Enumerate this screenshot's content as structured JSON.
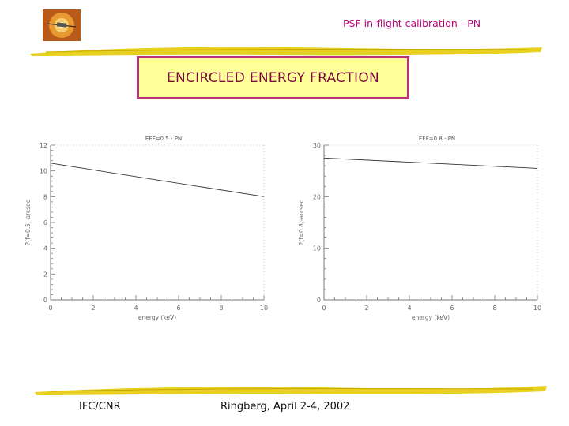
{
  "header": {
    "title": "PSF in-flight calibration - PN"
  },
  "slide": {
    "title": "ENCIRCLED ENERGY FRACTION"
  },
  "footer": {
    "left": "IFC/CNR",
    "right": "Ringberg, April 2-4, 2002"
  },
  "colors": {
    "accent": "#b5357a",
    "title_bg": "#ffff99",
    "stroke": "#e8d020",
    "header_text": "#c0007a"
  },
  "logo": {
    "icon": "xmm-satellite-logo"
  },
  "chart_data": [
    {
      "type": "line",
      "title": "EEF=0.5 - PN",
      "xlabel": "energy (keV)",
      "ylabel": "?(f=0.5)-arcsec",
      "xlim": [
        0,
        10
      ],
      "ylim": [
        0,
        12
      ],
      "xticks": [
        0,
        2,
        4,
        6,
        8,
        10
      ],
      "yticks": [
        0,
        2,
        4,
        6,
        8,
        10,
        12
      ],
      "grid": false,
      "x": [
        0,
        10
      ],
      "y": [
        10.6,
        8.0
      ]
    },
    {
      "type": "line",
      "title": "EEF=0.8 - PN",
      "xlabel": "energy (keV)",
      "ylabel": "?(f=0.8)-arcsec",
      "xlim": [
        0,
        10
      ],
      "ylim": [
        0,
        30
      ],
      "xticks": [
        0,
        2,
        4,
        6,
        8,
        10
      ],
      "yticks": [
        0,
        10,
        20,
        30
      ],
      "grid": false,
      "x": [
        0,
        10
      ],
      "y": [
        27.5,
        25.5
      ]
    }
  ]
}
